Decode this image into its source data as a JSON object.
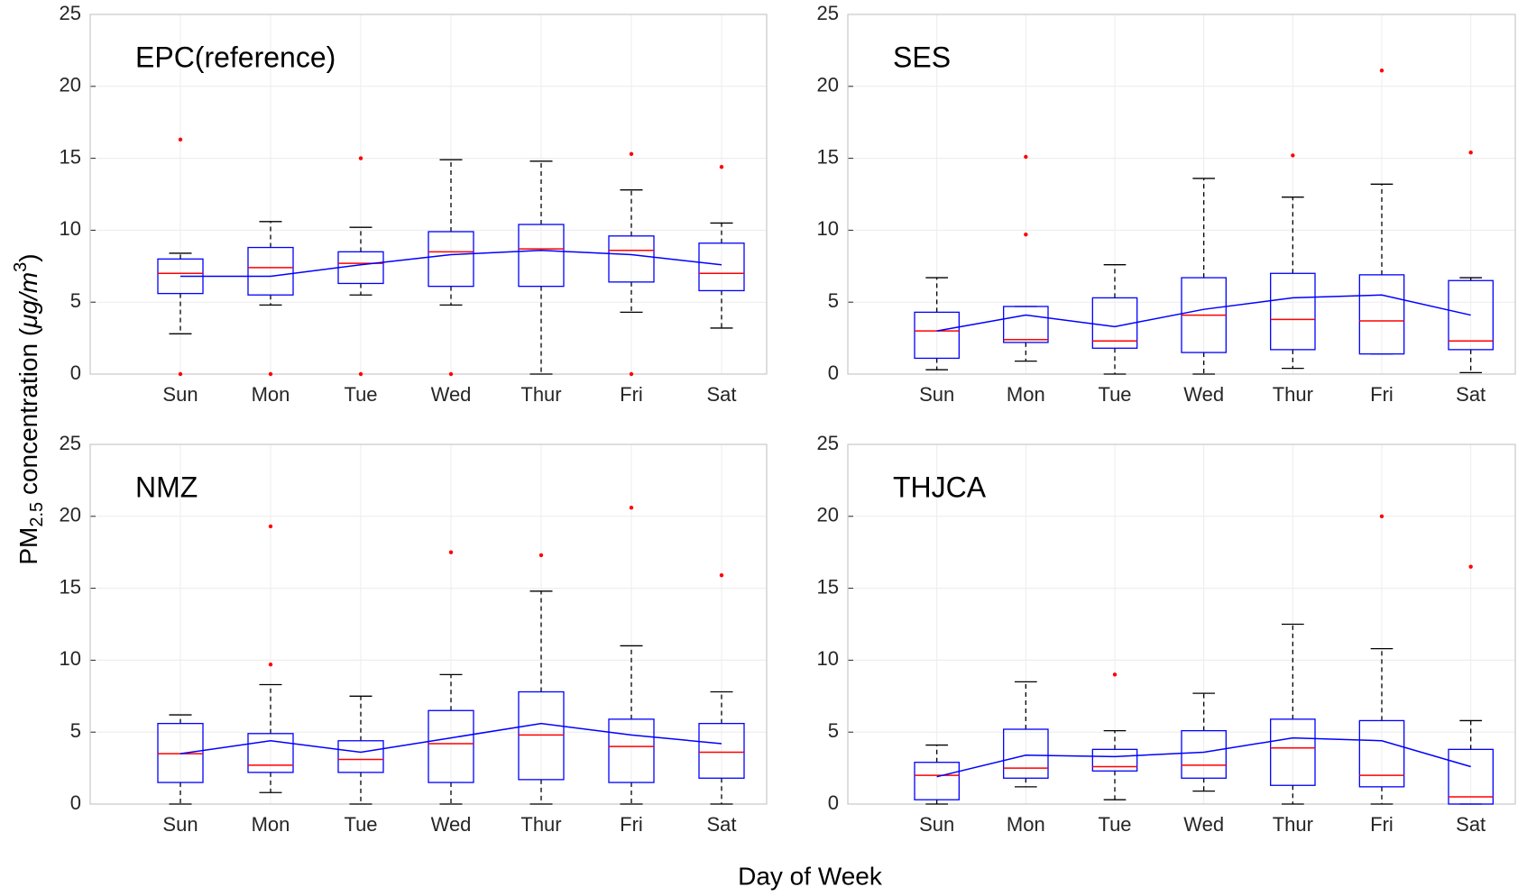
{
  "x_label": "Day of Week",
  "y_label_parts": [
    "PM",
    "2.5",
    " concentration (",
    "μg/m",
    "3",
    ")"
  ],
  "chart_data": [
    {
      "type": "box",
      "title": "EPC(reference)",
      "categories": [
        "Sun",
        "Mon",
        "Tue",
        "Wed",
        "Thur",
        "Fri",
        "Sat"
      ],
      "ylim": [
        0,
        25
      ],
      "yticks": [
        0,
        5,
        10,
        15,
        20,
        25
      ],
      "grid": true,
      "box_color": "#0000ff",
      "median_color": "#ff0000",
      "whisker_color": "#000000",
      "boxes": [
        {
          "low": 2.8,
          "q1": 5.6,
          "median": 7.0,
          "q3": 8.0,
          "high": 8.4,
          "outliers": [
            16.3,
            0
          ]
        },
        {
          "low": 4.8,
          "q1": 5.5,
          "median": 7.4,
          "q3": 8.8,
          "high": 10.6,
          "outliers": [
            0
          ]
        },
        {
          "low": 5.5,
          "q1": 6.3,
          "median": 7.7,
          "q3": 8.5,
          "high": 10.2,
          "outliers": [
            15,
            0
          ]
        },
        {
          "low": 4.8,
          "q1": 6.1,
          "median": 8.5,
          "q3": 9.9,
          "high": 14.9,
          "outliers": [
            0
          ]
        },
        {
          "low": 0,
          "q1": 6.1,
          "median": 8.7,
          "q3": 10.4,
          "high": 14.8,
          "outliers": []
        },
        {
          "low": 4.3,
          "q1": 6.4,
          "median": 8.6,
          "q3": 9.6,
          "high": 12.8,
          "outliers": [
            15.3,
            0
          ]
        },
        {
          "low": 3.2,
          "q1": 5.8,
          "median": 7.0,
          "q3": 9.1,
          "high": 10.5,
          "outliers": [
            14.4
          ]
        }
      ],
      "mean_line": {
        "color": "#0000ff",
        "values": [
          6.8,
          6.8,
          7.6,
          8.3,
          8.6,
          8.3,
          7.6
        ]
      }
    },
    {
      "type": "box",
      "title": "SES",
      "categories": [
        "Sun",
        "Mon",
        "Tue",
        "Wed",
        "Thur",
        "Fri",
        "Sat"
      ],
      "ylim": [
        0,
        25
      ],
      "yticks": [
        0,
        5,
        10,
        15,
        20,
        25
      ],
      "grid": true,
      "box_color": "#0000ff",
      "median_color": "#ff0000",
      "whisker_color": "#000000",
      "boxes": [
        {
          "low": 0.3,
          "q1": 1.1,
          "median": 3.0,
          "q3": 4.3,
          "high": 6.7,
          "outliers": []
        },
        {
          "low": 0.9,
          "q1": 2.2,
          "median": 2.4,
          "q3": 4.7,
          "high": 4.7,
          "outliers": [
            15.1,
            9.7
          ]
        },
        {
          "low": 0,
          "q1": 1.8,
          "median": 2.3,
          "q3": 5.3,
          "high": 7.6,
          "outliers": []
        },
        {
          "low": 0,
          "q1": 1.5,
          "median": 4.1,
          "q3": 6.7,
          "high": 13.6,
          "outliers": []
        },
        {
          "low": 0.4,
          "q1": 1.7,
          "median": 3.8,
          "q3": 7.0,
          "high": 12.3,
          "outliers": [
            15.2
          ]
        },
        {
          "low": 1.4,
          "q1": 1.4,
          "median": 3.7,
          "q3": 6.9,
          "high": 13.2,
          "outliers": [
            21.1
          ]
        },
        {
          "low": 0.1,
          "q1": 1.7,
          "median": 2.3,
          "q3": 6.5,
          "high": 6.7,
          "outliers": [
            15.4
          ]
        }
      ],
      "mean_line": {
        "color": "#0000ff",
        "values": [
          3.0,
          4.1,
          3.3,
          4.5,
          5.3,
          5.5,
          4.1
        ]
      }
    },
    {
      "type": "box",
      "title": "NMZ",
      "categories": [
        "Sun",
        "Mon",
        "Tue",
        "Wed",
        "Thur",
        "Fri",
        "Sat"
      ],
      "ylim": [
        0,
        25
      ],
      "yticks": [
        0,
        5,
        10,
        15,
        20,
        25
      ],
      "grid": true,
      "box_color": "#0000ff",
      "median_color": "#ff0000",
      "whisker_color": "#000000",
      "boxes": [
        {
          "low": 0,
          "q1": 1.5,
          "median": 3.5,
          "q3": 5.6,
          "high": 6.2,
          "outliers": []
        },
        {
          "low": 0.8,
          "q1": 2.2,
          "median": 2.7,
          "q3": 4.9,
          "high": 8.3,
          "outliers": [
            19.3,
            9.7
          ]
        },
        {
          "low": 0,
          "q1": 2.2,
          "median": 3.1,
          "q3": 4.4,
          "high": 7.5,
          "outliers": []
        },
        {
          "low": 0,
          "q1": 1.5,
          "median": 4.2,
          "q3": 6.5,
          "high": 9.0,
          "outliers": [
            17.5
          ]
        },
        {
          "low": 0,
          "q1": 1.7,
          "median": 4.8,
          "q3": 7.8,
          "high": 14.8,
          "outliers": [
            17.3
          ]
        },
        {
          "low": 0,
          "q1": 1.5,
          "median": 4.0,
          "q3": 5.9,
          "high": 11.0,
          "outliers": [
            20.6
          ]
        },
        {
          "low": 0,
          "q1": 1.8,
          "median": 3.6,
          "q3": 5.6,
          "high": 7.8,
          "outliers": [
            15.9
          ]
        }
      ],
      "mean_line": {
        "color": "#0000ff",
        "values": [
          3.5,
          4.4,
          3.6,
          4.6,
          5.6,
          4.8,
          4.2
        ]
      }
    },
    {
      "type": "box",
      "title": "THJCA",
      "categories": [
        "Sun",
        "Mon",
        "Tue",
        "Wed",
        "Thur",
        "Fri",
        "Sat"
      ],
      "ylim": [
        0,
        25
      ],
      "yticks": [
        0,
        5,
        10,
        15,
        20,
        25
      ],
      "grid": true,
      "box_color": "#0000ff",
      "median_color": "#ff0000",
      "whisker_color": "#000000",
      "boxes": [
        {
          "low": 0,
          "q1": 0.3,
          "median": 2.0,
          "q3": 2.9,
          "high": 4.1,
          "outliers": []
        },
        {
          "low": 1.2,
          "q1": 1.8,
          "median": 2.5,
          "q3": 5.2,
          "high": 8.5,
          "outliers": []
        },
        {
          "low": 0.3,
          "q1": 2.3,
          "median": 2.6,
          "q3": 3.8,
          "high": 5.1,
          "outliers": [
            9.0
          ]
        },
        {
          "low": 0.9,
          "q1": 1.8,
          "median": 2.7,
          "q3": 5.1,
          "high": 7.7,
          "outliers": []
        },
        {
          "low": 0,
          "q1": 1.3,
          "median": 3.9,
          "q3": 5.9,
          "high": 12.5,
          "outliers": []
        },
        {
          "low": 0,
          "q1": 1.2,
          "median": 2.0,
          "q3": 5.8,
          "high": 10.8,
          "outliers": [
            20.0
          ]
        },
        {
          "low": 0,
          "q1": 0,
          "median": 0.5,
          "q3": 3.8,
          "high": 5.8,
          "outliers": [
            16.5
          ]
        }
      ],
      "mean_line": {
        "color": "#0000ff",
        "values": [
          1.9,
          3.4,
          3.3,
          3.6,
          4.6,
          4.4,
          2.6
        ]
      }
    }
  ]
}
